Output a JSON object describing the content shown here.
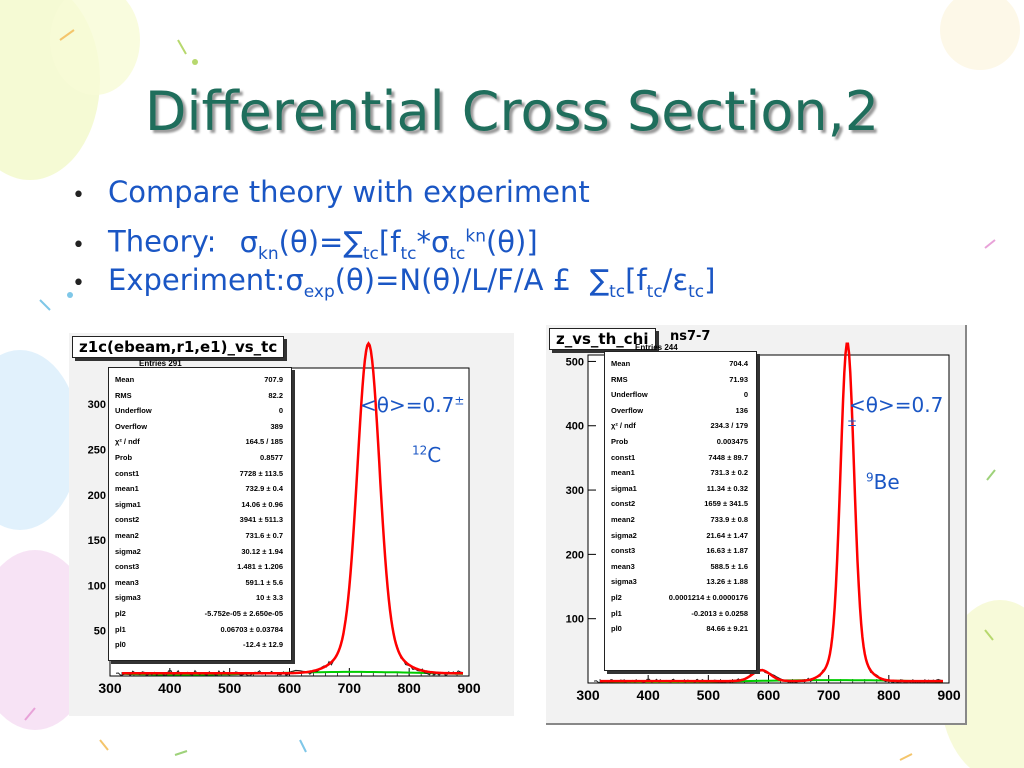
{
  "slide": {
    "title": "Differential Cross Section,2",
    "bullets": [
      {
        "label": "Compare theory with experiment"
      },
      {
        "label": "Theory:"
      },
      {
        "label": "Experiment:"
      }
    ],
    "theory_formula": {
      "sigma1": "σ",
      "kn": "kn",
      "theta1": "(θ)=",
      "sum": "∑",
      "tc1": "tc",
      "bracket1": "[f",
      "tc2": "tc",
      "star": "*σ",
      "tc3": "tc",
      "kn2": "kn",
      "theta2": "(θ)]"
    },
    "experiment_formula": {
      "sigma": "σ",
      "exp": "exp",
      "rest": "(θ)=N(θ)/L/F/A £",
      "sum": "∑",
      "tc1": "tc",
      "f": "[f",
      "tc2": "tc",
      "slash": "/ε",
      "tc3": "tc",
      "close": "]"
    },
    "colors": {
      "title": "#1f6e5c",
      "text": "#1a56c4",
      "curve": "#ff0000",
      "background_fit": "#00cc00"
    }
  },
  "plots": {
    "left": {
      "title": "z1c(ebeam,r1,e1)_vs_tc",
      "header_partial": "Entries                 291",
      "stats": [
        {
          "k": "Mean",
          "v": "707.9"
        },
        {
          "k": "RMS",
          "v": "82.2"
        },
        {
          "k": "Underflow",
          "v": "0"
        },
        {
          "k": "Overflow",
          "v": "389"
        },
        {
          "k": "χ² / ndf",
          "v": "164.5 / 185"
        },
        {
          "k": "Prob",
          "v": "0.8577"
        },
        {
          "k": "const1",
          "v": "7728 ± 113.5"
        },
        {
          "k": "mean1",
          "v": "732.9 ± 0.4"
        },
        {
          "k": "sigma1",
          "v": "14.06 ± 0.96"
        },
        {
          "k": "const2",
          "v": "3941 ± 511.3"
        },
        {
          "k": "mean2",
          "v": "731.6 ± 0.7"
        },
        {
          "k": "sigma2",
          "v": "30.12 ± 1.94"
        },
        {
          "k": "const3",
          "v": "1.481 ± 1.206"
        },
        {
          "k": "mean3",
          "v": "591.1 ± 5.6"
        },
        {
          "k": "sigma3",
          "v": "10 ± 3.3"
        },
        {
          "k": "pl2",
          "v": "-5.752e-05 ± 2.650e-05"
        },
        {
          "k": "pl1",
          "v": "0.06703 ± 0.03784"
        },
        {
          "k": "pl0",
          "v": "-12.4 ± 12.9"
        }
      ],
      "annotation": {
        "mean": "<θ>=0.7",
        "pm": "±",
        "nucleus_mass": "12",
        "nucleus": "C"
      },
      "chart_data": {
        "type": "line",
        "x_ticks": [
          "300",
          "400",
          "500",
          "600",
          "700",
          "800",
          "900"
        ],
        "y_ticks": [
          "50",
          "100",
          "150",
          "200",
          "250",
          "300"
        ],
        "xlim": [
          300,
          900
        ],
        "ylim": [
          0,
          340
        ],
        "peak_x": 732,
        "peak_y": 325,
        "peak_width": 18,
        "baseline_y": 3
      }
    },
    "right": {
      "title": "z_vs_th_chi",
      "title_suffix": "ns7-7",
      "header_partial": "Entries                 244",
      "stats": [
        {
          "k": "Mean",
          "v": "704.4"
        },
        {
          "k": "RMS",
          "v": "71.93"
        },
        {
          "k": "Underflow",
          "v": "0"
        },
        {
          "k": "Overflow",
          "v": "136"
        },
        {
          "k": "χ² / ndf",
          "v": "234.3 / 179"
        },
        {
          "k": "Prob",
          "v": "0.003475"
        },
        {
          "k": "const1",
          "v": "7448 ± 89.7"
        },
        {
          "k": "mean1",
          "v": "731.3 ± 0.2"
        },
        {
          "k": "sigma1",
          "v": "11.34 ± 0.32"
        },
        {
          "k": "const2",
          "v": "1659 ± 341.5"
        },
        {
          "k": "mean2",
          "v": "733.9 ± 0.8"
        },
        {
          "k": "sigma2",
          "v": "21.64 ± 1.47"
        },
        {
          "k": "const3",
          "v": "16.63 ± 1.87"
        },
        {
          "k": "mean3",
          "v": "588.5 ± 1.6"
        },
        {
          "k": "sigma3",
          "v": "13.26 ± 1.88"
        },
        {
          "k": "pl2",
          "v": "0.0001214 ± 0.0000176"
        },
        {
          "k": "pl1",
          "v": "-0.2013 ± 0.0258"
        },
        {
          "k": "pl0",
          "v": "84.66 ± 9.21"
        }
      ],
      "annotation": {
        "mean": "<θ>=0.7",
        "pm": "±",
        "nucleus_mass": "9",
        "nucleus": "Be"
      },
      "chart_data": {
        "type": "line",
        "x_ticks": [
          "300",
          "400",
          "500",
          "600",
          "700",
          "800",
          "900"
        ],
        "y_ticks": [
          "100",
          "200",
          "300",
          "400",
          "500"
        ],
        "xlim": [
          300,
          900
        ],
        "ylim": [
          0,
          510
        ],
        "peak_x": 731,
        "peak_y": 470,
        "peak_width": 11,
        "bump_x": 588,
        "bump_y": 17,
        "baseline_y": 3
      }
    }
  }
}
